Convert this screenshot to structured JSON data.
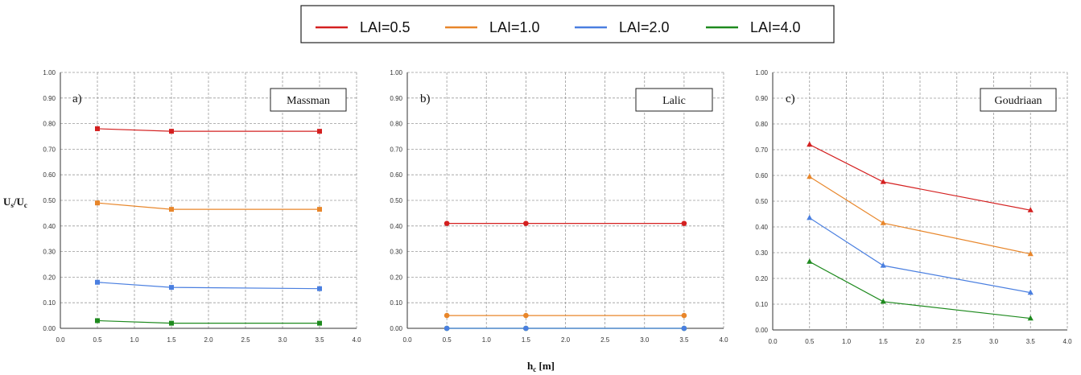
{
  "legend": {
    "entries": [
      {
        "label": "LAI=0.5",
        "color": "#d42020"
      },
      {
        "label": "LAI=1.0",
        "color": "#e8862a"
      },
      {
        "label": "LAI=2.0",
        "color": "#4a7fe0"
      },
      {
        "label": "LAI=4.0",
        "color": "#1e8a1e"
      }
    ]
  },
  "axes": {
    "ylabel_main": "U",
    "ylabel_sub1": "s",
    "ylabel_mid": "/U",
    "ylabel_sub2": "c",
    "xlabel_main": "h",
    "xlabel_sub": "c",
    "xlabel_unit": " [m]"
  },
  "chart_data": [
    {
      "type": "line",
      "panel": "a)",
      "title": "Massman",
      "marker": "square",
      "xlim": [
        0,
        4
      ],
      "ylim": [
        0,
        1
      ],
      "x": [
        0.5,
        1.5,
        3.5
      ],
      "x_ticks": [
        "0.0",
        "0.5",
        "1.0",
        "1.5",
        "2.0",
        "2.5",
        "3.0",
        "3.5",
        "4.0"
      ],
      "y_ticks": [
        "0.00",
        "0.10",
        "0.20",
        "0.30",
        "0.40",
        "0.50",
        "0.60",
        "0.70",
        "0.80",
        "0.90",
        "1.00"
      ],
      "grid": true,
      "series": [
        {
          "name": "LAI=0.5",
          "values": [
            0.78,
            0.77,
            0.77
          ]
        },
        {
          "name": "LAI=1.0",
          "values": [
            0.49,
            0.465,
            0.465
          ]
        },
        {
          "name": "LAI=2.0",
          "values": [
            0.18,
            0.16,
            0.155
          ]
        },
        {
          "name": "LAI=4.0",
          "values": [
            0.03,
            0.02,
            0.02
          ]
        }
      ]
    },
    {
      "type": "line",
      "panel": "b)",
      "title": "Lalic",
      "marker": "circle",
      "xlim": [
        0,
        4
      ],
      "ylim": [
        0,
        1
      ],
      "x": [
        0.5,
        1.5,
        3.5
      ],
      "x_ticks": [
        "0.0",
        "0.5",
        "1.0",
        "1.5",
        "2.0",
        "2.5",
        "3.0",
        "3.5",
        "4.0"
      ],
      "y_ticks": [
        "0.00",
        "0.10",
        "0.20",
        "0.30",
        "0.40",
        "0.50",
        "0.60",
        "0.70",
        "0.80",
        "0.90",
        "1.00"
      ],
      "grid": true,
      "series": [
        {
          "name": "LAI=0.5",
          "values": [
            0.41,
            0.41,
            0.41
          ]
        },
        {
          "name": "LAI=1.0",
          "values": [
            0.05,
            0.05,
            0.05
          ]
        },
        {
          "name": "LAI=2.0",
          "values": [
            0.0,
            0.0,
            0.0
          ]
        },
        {
          "name": "LAI=4.0",
          "values": [
            0.0,
            0.0,
            0.0
          ]
        }
      ]
    },
    {
      "type": "line",
      "panel": "c)",
      "title": "Goudriaan",
      "marker": "triangle",
      "xlim": [
        0,
        4
      ],
      "ylim": [
        0,
        1
      ],
      "x": [
        0.5,
        1.5,
        3.5
      ],
      "x_ticks": [
        "0.0",
        "0.5",
        "1.0",
        "1.5",
        "2.0",
        "2.5",
        "3.0",
        "3.5",
        "4.0"
      ],
      "y_ticks": [
        "0.00",
        "0.10",
        "0.20",
        "0.30",
        "0.40",
        "0.50",
        "0.60",
        "0.70",
        "0.80",
        "0.90",
        "1.00"
      ],
      "grid": true,
      "series": [
        {
          "name": "LAI=0.5",
          "values": [
            0.72,
            0.575,
            0.465
          ]
        },
        {
          "name": "LAI=1.0",
          "values": [
            0.595,
            0.415,
            0.295
          ]
        },
        {
          "name": "LAI=2.0",
          "values": [
            0.435,
            0.25,
            0.145
          ]
        },
        {
          "name": "LAI=4.0",
          "values": [
            0.265,
            0.11,
            0.045
          ]
        }
      ]
    }
  ]
}
